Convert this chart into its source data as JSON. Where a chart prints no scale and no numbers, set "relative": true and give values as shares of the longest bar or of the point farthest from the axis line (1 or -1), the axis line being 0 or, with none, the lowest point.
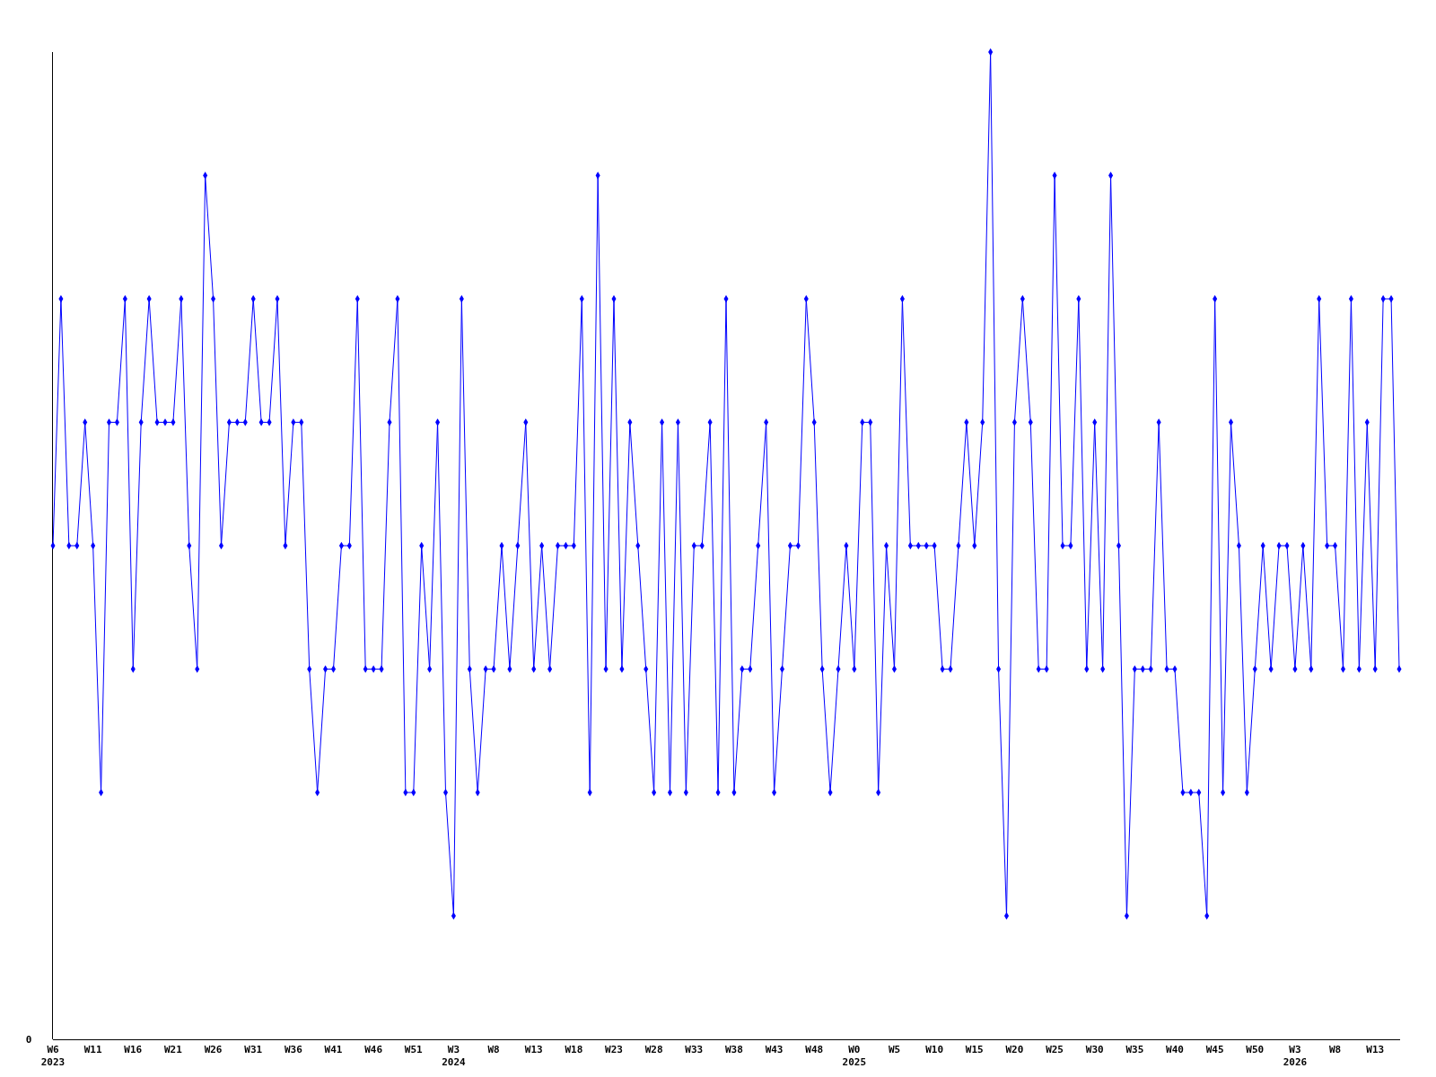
{
  "chart_data": {
    "type": "line",
    "relative": true,
    "marker": "diamond",
    "annotations": [
      "0"
    ],
    "categories": [
      "W6\n2023",
      null,
      null,
      null,
      null,
      "W11",
      null,
      null,
      null,
      null,
      "W16",
      null,
      null,
      null,
      null,
      "W21",
      null,
      null,
      null,
      null,
      "W26",
      null,
      null,
      null,
      null,
      "W31",
      null,
      null,
      null,
      null,
      "W36",
      null,
      null,
      null,
      null,
      "W41",
      null,
      null,
      null,
      null,
      "W46",
      null,
      null,
      null,
      null,
      "W51",
      null,
      null,
      null,
      null,
      "W3\n2024",
      null,
      null,
      null,
      null,
      "W8",
      null,
      null,
      null,
      null,
      "W13",
      null,
      null,
      null,
      null,
      "W18",
      null,
      null,
      null,
      null,
      "W23",
      null,
      null,
      null,
      null,
      "W28",
      null,
      null,
      null,
      null,
      "W33",
      null,
      null,
      null,
      null,
      "W38",
      null,
      null,
      null,
      null,
      "W43",
      null,
      null,
      null,
      null,
      "W48",
      null,
      null,
      null,
      null,
      "W0\n2025",
      null,
      null,
      null,
      null,
      "W5",
      null,
      null,
      null,
      null,
      "W10",
      null,
      null,
      null,
      null,
      "W15",
      null,
      null,
      null,
      null,
      "W20",
      null,
      null,
      null,
      null,
      "W25",
      null,
      null,
      null,
      null,
      "W30",
      null,
      null,
      null,
      null,
      "W35",
      null,
      null,
      null,
      null,
      "W40",
      null,
      null,
      null,
      null,
      "W45",
      null,
      null,
      null,
      null,
      "W50",
      null,
      null,
      null,
      null,
      "W3\n2026",
      null,
      null,
      null,
      null,
      "W8",
      null,
      null,
      null,
      null,
      "W13",
      null,
      null,
      null
    ],
    "series": [
      {
        "color": "#0000ff",
        "values": [
          0.5,
          0.75,
          0.5,
          0.5,
          0.625,
          0.5,
          0.25,
          0.625,
          0.625,
          0.75,
          0.375,
          0.625,
          0.75,
          0.625,
          0.625,
          0.625,
          0.75,
          0.5,
          0.375,
          0.875,
          0.75,
          0.5,
          0.625,
          0.625,
          0.625,
          0.75,
          0.625,
          0.625,
          0.75,
          0.5,
          0.625,
          0.625,
          0.375,
          0.25,
          0.375,
          0.375,
          0.5,
          0.5,
          0.75,
          0.375,
          0.375,
          0.375,
          0.625,
          0.75,
          0.25,
          0.25,
          0.5,
          0.375,
          0.625,
          0.25,
          0.125,
          0.75,
          0.375,
          0.25,
          0.375,
          0.375,
          0.5,
          0.375,
          0.5,
          0.625,
          0.375,
          0.5,
          0.375,
          0.5,
          0.5,
          0.5,
          0.75,
          0.25,
          0.875,
          0.375,
          0.75,
          0.375,
          0.625,
          0.5,
          0.375,
          0.25,
          0.625,
          0.25,
          0.625,
          0.25,
          0.5,
          0.5,
          0.625,
          0.25,
          0.75,
          0.25,
          0.375,
          0.375,
          0.5,
          0.625,
          0.25,
          0.375,
          0.5,
          0.5,
          0.75,
          0.625,
          0.375,
          0.25,
          0.375,
          0.5,
          0.375,
          0.625,
          0.625,
          0.25,
          0.5,
          0.375,
          0.75,
          0.5,
          0.5,
          0.5,
          0.5,
          0.375,
          0.375,
          0.5,
          0.625,
          0.5,
          0.625,
          1,
          0.375,
          0.125,
          0.625,
          0.75,
          0.625,
          0.375,
          0.375,
          0.875,
          0.5,
          0.5,
          0.75,
          0.375,
          0.625,
          0.375,
          0.875,
          0.5,
          0.125,
          0.375,
          0.375,
          0.375,
          0.625,
          0.375,
          0.375,
          0.25,
          0.25,
          0.25,
          0.125,
          0.75,
          0.25,
          0.625,
          0.5,
          0.25,
          0.375,
          0.5,
          0.375,
          0.5,
          0.5,
          0.375,
          0.5,
          0.375,
          0.75,
          0.5,
          0.5,
          0.375,
          0.75,
          0.375,
          0.625,
          0.375,
          0.75,
          0.75,
          0.375
        ]
      }
    ]
  }
}
